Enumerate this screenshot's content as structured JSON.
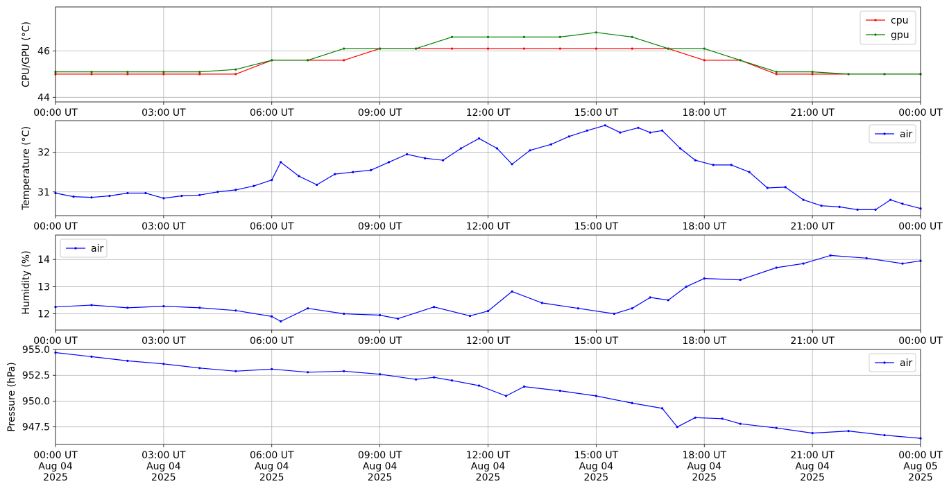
{
  "chart_data": [
    {
      "type": "line",
      "ylabel": "CPU/GPU (°C)",
      "xlim": [
        "2025-08-04 00:00",
        "2025-08-05 00:00"
      ],
      "ylim": [
        43.8,
        47.9
      ],
      "yticks": [
        44,
        46
      ],
      "xtick_labels": [
        "00:00 UT",
        "03:00 UT",
        "06:00 UT",
        "09:00 UT",
        "12:00 UT",
        "15:00 UT",
        "18:00 UT",
        "21:00 UT",
        "00:00 UT"
      ],
      "grid": true,
      "legend_position": "top-right",
      "x": [
        "2025-08-04 00:00",
        "2025-08-04 01:00",
        "2025-08-04 02:00",
        "2025-08-04 03:00",
        "2025-08-04 04:00",
        "2025-08-04 05:00",
        "2025-08-04 06:00",
        "2025-08-04 07:00",
        "2025-08-04 08:00",
        "2025-08-04 09:00",
        "2025-08-04 10:00",
        "2025-08-04 11:00",
        "2025-08-04 12:00",
        "2025-08-04 13:00",
        "2025-08-04 14:00",
        "2025-08-04 15:00",
        "2025-08-04 16:00",
        "2025-08-04 17:00",
        "2025-08-04 18:00",
        "2025-08-04 19:00",
        "2025-08-04 20:00",
        "2025-08-04 21:00",
        "2025-08-04 22:00",
        "2025-08-04 23:00",
        "2025-08-05 00:00"
      ],
      "series": [
        {
          "name": "cpu",
          "color": "#ff0000",
          "values": [
            45.0,
            45.0,
            45.0,
            45.0,
            45.0,
            45.0,
            45.6,
            45.6,
            45.6,
            46.1,
            46.1,
            46.1,
            46.1,
            46.1,
            46.1,
            46.1,
            46.1,
            46.1,
            45.6,
            45.6,
            45.0,
            45.0,
            45.0,
            45.0,
            45.0
          ]
        },
        {
          "name": "gpu",
          "color": "#008000",
          "values": [
            45.1,
            45.1,
            45.1,
            45.1,
            45.1,
            45.2,
            45.6,
            45.6,
            46.1,
            46.1,
            46.1,
            46.6,
            46.6,
            46.6,
            46.6,
            46.8,
            46.6,
            46.1,
            46.1,
            45.6,
            45.1,
            45.1,
            45.0,
            45.0,
            45.0
          ]
        }
      ]
    },
    {
      "type": "line",
      "ylabel": "Temperature (°C)",
      "xlim": [
        "2025-08-04 00:00",
        "2025-08-05 00:00"
      ],
      "ylim": [
        30.4,
        32.8
      ],
      "yticks": [
        31,
        32
      ],
      "xtick_labels": [
        "00:00 UT",
        "03:00 UT",
        "06:00 UT",
        "09:00 UT",
        "12:00 UT",
        "15:00 UT",
        "18:00 UT",
        "21:00 UT",
        "00:00 UT"
      ],
      "grid": true,
      "legend_position": "top-right",
      "x": [
        "2025-08-04 00:00",
        "2025-08-04 00:30",
        "2025-08-04 01:00",
        "2025-08-04 01:30",
        "2025-08-04 02:00",
        "2025-08-04 02:30",
        "2025-08-04 03:00",
        "2025-08-04 03:30",
        "2025-08-04 04:00",
        "2025-08-04 04:30",
        "2025-08-04 05:00",
        "2025-08-04 05:30",
        "2025-08-04 06:00",
        "2025-08-04 06:15",
        "2025-08-04 06:45",
        "2025-08-04 07:15",
        "2025-08-04 07:45",
        "2025-08-04 08:15",
        "2025-08-04 08:45",
        "2025-08-04 09:15",
        "2025-08-04 09:45",
        "2025-08-04 10:15",
        "2025-08-04 10:45",
        "2025-08-04 11:15",
        "2025-08-04 11:45",
        "2025-08-04 12:15",
        "2025-08-04 12:40",
        "2025-08-04 13:10",
        "2025-08-04 13:45",
        "2025-08-04 14:15",
        "2025-08-04 14:45",
        "2025-08-04 15:15",
        "2025-08-04 15:40",
        "2025-08-04 16:10",
        "2025-08-04 16:30",
        "2025-08-04 16:50",
        "2025-08-04 17:20",
        "2025-08-04 17:45",
        "2025-08-04 18:15",
        "2025-08-04 18:45",
        "2025-08-04 19:15",
        "2025-08-04 19:45",
        "2025-08-04 20:15",
        "2025-08-04 20:45",
        "2025-08-04 21:15",
        "2025-08-04 21:45",
        "2025-08-04 22:15",
        "2025-08-04 22:45",
        "2025-08-04 23:10",
        "2025-08-04 23:30",
        "2025-08-05 00:00"
      ],
      "series": [
        {
          "name": "air",
          "color": "#0000ff",
          "values": [
            30.97,
            30.88,
            30.86,
            30.9,
            30.97,
            30.97,
            30.84,
            30.9,
            30.92,
            31.0,
            31.05,
            31.15,
            31.3,
            31.75,
            31.4,
            31.18,
            31.45,
            31.5,
            31.55,
            31.75,
            31.95,
            31.85,
            31.8,
            32.1,
            32.35,
            32.1,
            31.7,
            32.05,
            32.2,
            32.4,
            32.55,
            32.68,
            32.5,
            32.62,
            32.5,
            32.55,
            32.1,
            31.8,
            31.68,
            31.68,
            31.5,
            31.1,
            31.12,
            30.8,
            30.65,
            30.62,
            30.55,
            30.55,
            30.8,
            30.7,
            30.58
          ]
        }
      ]
    },
    {
      "type": "line",
      "ylabel": "Humidity (%)",
      "xlim": [
        "2025-08-04 00:00",
        "2025-08-05 00:00"
      ],
      "ylim": [
        11.4,
        14.9
      ],
      "yticks": [
        12,
        13,
        14
      ],
      "xtick_labels": [
        "00:00 UT",
        "03:00 UT",
        "06:00 UT",
        "09:00 UT",
        "12:00 UT",
        "15:00 UT",
        "18:00 UT",
        "21:00 UT",
        "00:00 UT"
      ],
      "grid": true,
      "legend_position": "top-left",
      "x": [
        "2025-08-04 00:00",
        "2025-08-04 01:00",
        "2025-08-04 02:00",
        "2025-08-04 03:00",
        "2025-08-04 04:00",
        "2025-08-04 05:00",
        "2025-08-04 06:00",
        "2025-08-04 06:15",
        "2025-08-04 07:00",
        "2025-08-04 08:00",
        "2025-08-04 09:00",
        "2025-08-04 09:30",
        "2025-08-04 10:30",
        "2025-08-04 11:30",
        "2025-08-04 12:00",
        "2025-08-04 12:40",
        "2025-08-04 13:30",
        "2025-08-04 14:30",
        "2025-08-04 15:30",
        "2025-08-04 16:00",
        "2025-08-04 16:30",
        "2025-08-04 17:00",
        "2025-08-04 17:30",
        "2025-08-04 18:00",
        "2025-08-04 19:00",
        "2025-08-04 20:00",
        "2025-08-04 20:45",
        "2025-08-04 21:30",
        "2025-08-04 22:30",
        "2025-08-04 23:30",
        "2025-08-05 00:00"
      ],
      "series": [
        {
          "name": "air",
          "color": "#0000ff",
          "values": [
            12.25,
            12.32,
            12.22,
            12.28,
            12.22,
            12.12,
            11.9,
            11.72,
            12.2,
            12.0,
            11.95,
            11.82,
            12.25,
            11.92,
            12.1,
            12.82,
            12.4,
            12.2,
            12.0,
            12.2,
            12.6,
            12.5,
            13.0,
            13.3,
            13.25,
            13.7,
            13.85,
            14.15,
            14.05,
            13.85,
            13.95
          ]
        }
      ]
    },
    {
      "type": "line",
      "ylabel": "Pressure (hPa)",
      "xlim": [
        "2025-08-04 00:00",
        "2025-08-05 00:00"
      ],
      "ylim": [
        945.8,
        955.0
      ],
      "yticks": [
        947.5,
        950.0,
        952.5,
        955.0
      ],
      "ytick_labels": [
        "947.5",
        "950.0",
        "952.5",
        "955.0"
      ],
      "xtick_labels": [
        "00:00 UT\nAug 04\n2025",
        "03:00 UT\nAug 04\n2025",
        "06:00 UT\nAug 04\n2025",
        "09:00 UT\nAug 04\n2025",
        "12:00 UT\nAug 04\n2025",
        "15:00 UT\nAug 04\n2025",
        "18:00 UT\nAug 04\n2025",
        "21:00 UT\nAug 04\n2025",
        "00:00 UT\nAug 05\n2025"
      ],
      "grid": true,
      "legend_position": "top-right",
      "x": [
        "2025-08-04 00:00",
        "2025-08-04 01:00",
        "2025-08-04 02:00",
        "2025-08-04 03:00",
        "2025-08-04 04:00",
        "2025-08-04 05:00",
        "2025-08-04 06:00",
        "2025-08-04 07:00",
        "2025-08-04 08:00",
        "2025-08-04 09:00",
        "2025-08-04 10:00",
        "2025-08-04 10:30",
        "2025-08-04 11:00",
        "2025-08-04 11:45",
        "2025-08-04 12:30",
        "2025-08-04 13:00",
        "2025-08-04 14:00",
        "2025-08-04 15:00",
        "2025-08-04 16:00",
        "2025-08-04 16:50",
        "2025-08-04 17:15",
        "2025-08-04 17:45",
        "2025-08-04 18:30",
        "2025-08-04 19:00",
        "2025-08-04 20:00",
        "2025-08-04 21:00",
        "2025-08-04 22:00",
        "2025-08-04 23:00",
        "2025-08-05 00:00"
      ],
      "series": [
        {
          "name": "air",
          "color": "#0000ff",
          "values": [
            954.7,
            954.3,
            953.9,
            953.6,
            953.2,
            952.9,
            953.1,
            952.8,
            952.9,
            952.6,
            952.1,
            952.3,
            952.0,
            951.5,
            950.5,
            951.4,
            951.0,
            950.5,
            949.8,
            949.3,
            947.5,
            948.4,
            948.3,
            947.8,
            947.4,
            946.9,
            947.1,
            946.7,
            946.4
          ]
        }
      ]
    }
  ]
}
